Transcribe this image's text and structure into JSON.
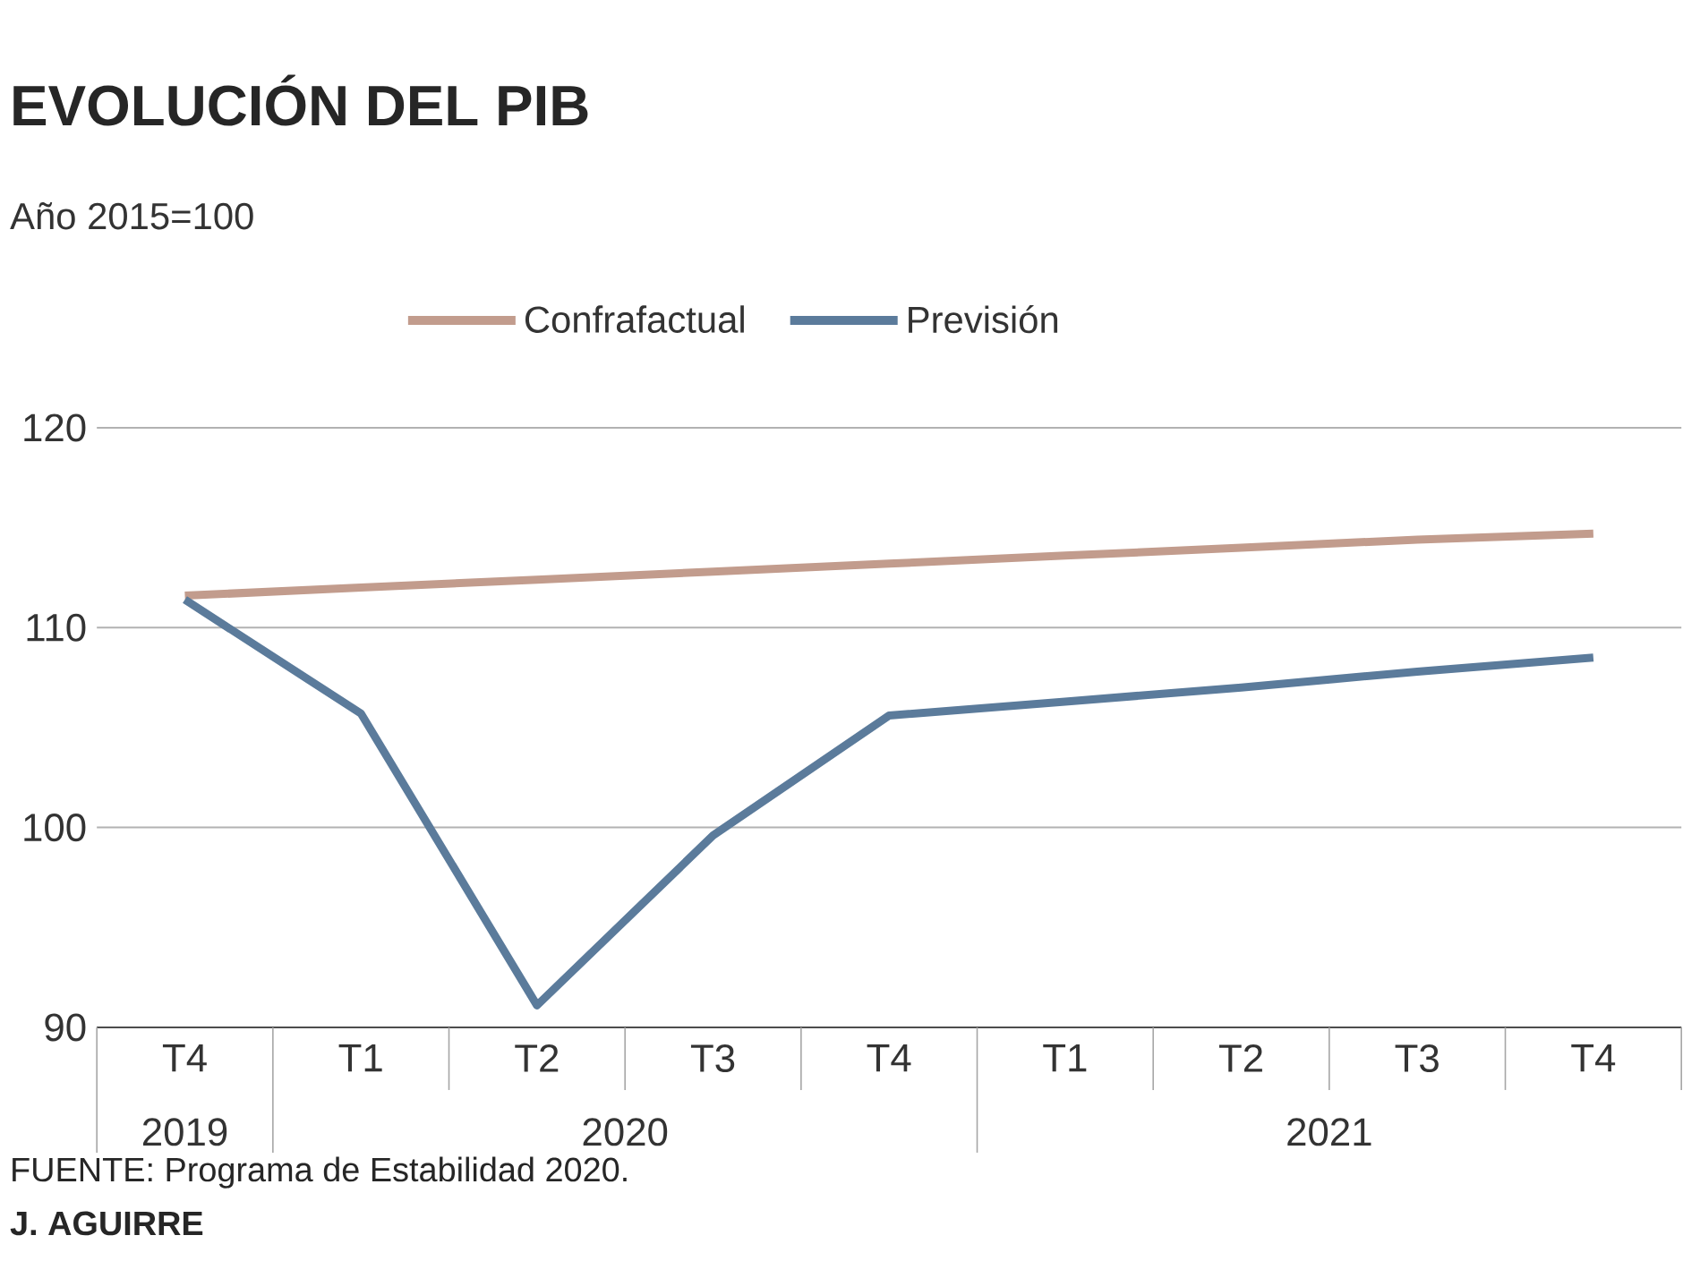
{
  "chart_data": {
    "type": "line",
    "title": "EVOLUCIÓN DEL PIB",
    "ylabel": "Año 2015=100",
    "categories": [
      "T4",
      "T1",
      "T2",
      "T3",
      "T4",
      "T1",
      "T2",
      "T3",
      "T4"
    ],
    "series": [
      {
        "name": "Confrafactual",
        "color": "#c29c8d",
        "values": [
          111.6,
          112.0,
          112.4,
          112.8,
          113.2,
          113.6,
          114.0,
          114.4,
          114.7
        ]
      },
      {
        "name": "Previsión",
        "color": "#5b7b9b",
        "values": [
          111.4,
          105.7,
          91.1,
          99.6,
          105.6,
          106.3,
          107.0,
          107.8,
          108.5
        ]
      }
    ],
    "ylim": [
      90,
      120
    ],
    "yticks": [
      90,
      100,
      110,
      120
    ],
    "grid": "y",
    "legend": "top",
    "marker": "none",
    "line_style": "solid",
    "annotations": [
      "2019",
      "2020",
      "2021",
      "FUENTE: Programa de Estabilidad 2020.",
      "J. AGUIRRE"
    ]
  }
}
